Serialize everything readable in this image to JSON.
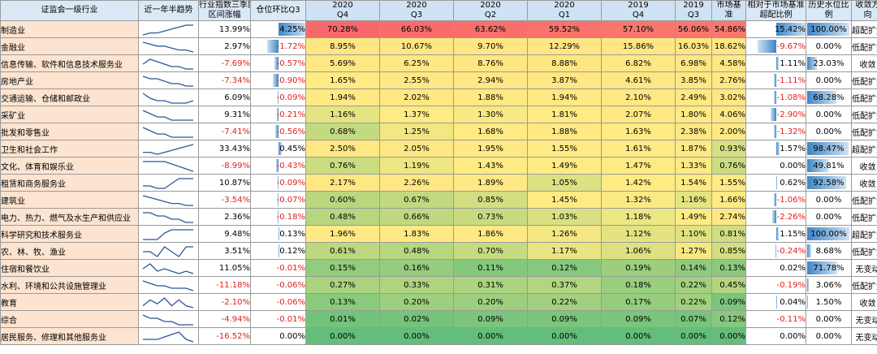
{
  "headers": {
    "industry": "证监会一级行业",
    "trend": "近一年半趋势",
    "change": [
      "行业指数三季度",
      "区间涨幅"
    ],
    "pos_change": "仓位环比Q3",
    "periods": [
      [
        "2020",
        "Q4"
      ],
      [
        "2020",
        "Q3"
      ],
      [
        "2020",
        "Q2"
      ],
      [
        "2020",
        "Q1"
      ],
      [
        "2019",
        "Q4"
      ],
      [
        "2019",
        "Q3"
      ]
    ],
    "benchmark": [
      "市场基",
      "准"
    ],
    "over": [
      "相对于市场基准",
      "超配比例"
    ],
    "hist": [
      "历史水位比",
      "例"
    ],
    "dir": [
      "收敛方",
      "向"
    ]
  },
  "colors": {
    "header_bg": "#dbe9f7",
    "industry_bg": "#fde4d0",
    "negative_text": "#e02020",
    "bar_blue": "#3d85c6",
    "heat_low": "#63be7b",
    "heat_mid": "#ffeb84",
    "heat_high": "#f8696b"
  },
  "rows": [
    {
      "name": "制造业",
      "trend": [
        2,
        3,
        3,
        4,
        5,
        6,
        7,
        7
      ],
      "change": "13.99%",
      "pos": "4.25%",
      "q": [
        "70.28%",
        "66.03%",
        "63.62%",
        "59.52%",
        "57.10%",
        "56.06%"
      ],
      "bench": "54.86%",
      "over": "15.42%",
      "hist": "100.00%",
      "dir": "超配扩大"
    },
    {
      "name": "金融业",
      "trend": [
        7,
        6,
        5,
        5,
        4,
        3,
        3,
        2
      ],
      "change": "2.97%",
      "pos": "-1.72%",
      "q": [
        "8.95%",
        "10.67%",
        "9.70%",
        "12.29%",
        "15.86%",
        "16.03%"
      ],
      "bench": "18.62%",
      "over": "-9.67%",
      "hist": "0.00%",
      "dir": "低配扩大"
    },
    {
      "name": "信息传输、软件和信息技术服务业",
      "trend": [
        5,
        7,
        6,
        5,
        4,
        4,
        3,
        3
      ],
      "change": "-7.69%",
      "pos": "-0.57%",
      "q": [
        "5.69%",
        "6.25%",
        "8.76%",
        "8.88%",
        "6.82%",
        "6.98%"
      ],
      "bench": "4.58%",
      "over": "1.11%",
      "hist": "23.03%",
      "dir": "收敛"
    },
    {
      "name": "房地产业",
      "trend": [
        7,
        6,
        6,
        5,
        4,
        4,
        3,
        3
      ],
      "change": "-7.34%",
      "pos": "-0.90%",
      "q": [
        "1.65%",
        "2.55%",
        "2.94%",
        "3.87%",
        "4.61%",
        "3.85%"
      ],
      "bench": "2.76%",
      "over": "-1.11%",
      "hist": "0.00%",
      "dir": "低配扩大"
    },
    {
      "name": "交通运输、仓储和邮政业",
      "trend": [
        7,
        5,
        4,
        4,
        3,
        3,
        3,
        4
      ],
      "change": "6.09%",
      "pos": "-0.09%",
      "q": [
        "1.94%",
        "2.02%",
        "1.88%",
        "1.94%",
        "2.10%",
        "2.49%"
      ],
      "bench": "3.02%",
      "over": "-1.08%",
      "hist": "68.28%",
      "dir": "低配扩大"
    },
    {
      "name": "采矿业",
      "trend": [
        6,
        5,
        4,
        4,
        3,
        3,
        3,
        3
      ],
      "change": "9.31%",
      "pos": "-0.21%",
      "q": [
        "1.16%",
        "1.37%",
        "1.30%",
        "1.81%",
        "2.07%",
        "1.80%"
      ],
      "bench": "4.06%",
      "over": "-2.90%",
      "hist": "0.00%",
      "dir": "低配扩大"
    },
    {
      "name": "批发和零售业",
      "trend": [
        6,
        5,
        4,
        4,
        3,
        3,
        3,
        3
      ],
      "change": "-7.41%",
      "pos": "-0.56%",
      "q": [
        "0.68%",
        "1.25%",
        "1.68%",
        "1.88%",
        "1.63%",
        "2.38%"
      ],
      "bench": "2.00%",
      "over": "-1.32%",
      "hist": "0.00%",
      "dir": "低配扩大"
    },
    {
      "name": "卫生和社会工作",
      "trend": [
        3,
        3,
        2,
        3,
        4,
        5,
        6,
        7
      ],
      "change": "33.43%",
      "pos": "0.45%",
      "q": [
        "2.50%",
        "2.05%",
        "1.95%",
        "1.55%",
        "1.61%",
        "1.87%"
      ],
      "bench": "0.93%",
      "over": "1.57%",
      "hist": "98.47%",
      "dir": "超配扩大"
    },
    {
      "name": "文化、体育和娱乐业",
      "trend": [
        6,
        6,
        6,
        6,
        5,
        4,
        3,
        2
      ],
      "change": "-8.99%",
      "pos": "-0.43%",
      "q": [
        "0.76%",
        "1.19%",
        "1.43%",
        "1.49%",
        "1.47%",
        "1.33%"
      ],
      "bench": "0.76%",
      "over": "0.00%",
      "hist": "49.81%",
      "dir": "收敛"
    },
    {
      "name": "租赁和商务服务业",
      "trend": [
        3,
        3,
        2,
        2,
        4,
        6,
        6,
        6
      ],
      "change": "10.87%",
      "pos": "-0.09%",
      "q": [
        "2.17%",
        "2.26%",
        "1.89%",
        "1.05%",
        "1.42%",
        "1.54%"
      ],
      "bench": "1.55%",
      "over": "0.62%",
      "hist": "92.58%",
      "dir": "收敛"
    },
    {
      "name": "建筑业",
      "trend": [
        7,
        6,
        5,
        4,
        3,
        3,
        2,
        2
      ],
      "change": "-3.54%",
      "pos": "-0.07%",
      "q": [
        "0.60%",
        "0.67%",
        "0.85%",
        "1.45%",
        "1.32%",
        "1.16%"
      ],
      "bench": "1.66%",
      "over": "-1.06%",
      "hist": "0.00%",
      "dir": "低配扩大"
    },
    {
      "name": "电力、热力、燃气及水生产和供应业",
      "trend": [
        6,
        6,
        5,
        5,
        4,
        4,
        3,
        3
      ],
      "change": "2.36%",
      "pos": "-0.18%",
      "q": [
        "0.48%",
        "0.66%",
        "0.73%",
        "1.03%",
        "1.18%",
        "1.49%"
      ],
      "bench": "2.74%",
      "over": "-2.26%",
      "hist": "0.00%",
      "dir": "低配扩大"
    },
    {
      "name": "科学研究和技术服务业",
      "trend": [
        3,
        3,
        3,
        5,
        6,
        6,
        6,
        6
      ],
      "change": "9.48%",
      "pos": "0.13%",
      "q": [
        "1.96%",
        "1.83%",
        "1.86%",
        "1.26%",
        "1.12%",
        "1.10%"
      ],
      "bench": "0.81%",
      "over": "1.15%",
      "hist": "100.00%",
      "dir": "超配扩大"
    },
    {
      "name": "农、林、牧、渔业",
      "trend": [
        4,
        4,
        3,
        5,
        4,
        3,
        5,
        5
      ],
      "change": "3.51%",
      "pos": "0.12%",
      "q": [
        "0.61%",
        "0.48%",
        "0.70%",
        "1.17%",
        "1.06%",
        "1.27%"
      ],
      "bench": "0.85%",
      "over": "-0.24%",
      "hist": "8.68%",
      "dir": "低配扩大"
    },
    {
      "name": "住宿和餐饮业",
      "trend": [
        5,
        7,
        4,
        5,
        4,
        3,
        4,
        3
      ],
      "change": "11.05%",
      "pos": "-0.01%",
      "q": [
        "0.15%",
        "0.16%",
        "0.11%",
        "0.12%",
        "0.19%",
        "0.14%"
      ],
      "bench": "0.13%",
      "over": "0.02%",
      "hist": "71.78%",
      "dir": "无变动"
    },
    {
      "name": "水利、环境和公共设施管理业",
      "trend": [
        7,
        6,
        5,
        5,
        4,
        4,
        4,
        3
      ],
      "change": "-11.18%",
      "pos": "-0.06%",
      "q": [
        "0.27%",
        "0.33%",
        "0.31%",
        "0.37%",
        "0.18%",
        "0.22%"
      ],
      "bench": "0.45%",
      "over": "-0.19%",
      "hist": "3.06%",
      "dir": "低配扩大"
    },
    {
      "name": "教育",
      "trend": [
        3,
        6,
        4,
        7,
        3,
        6,
        3,
        2
      ],
      "change": "-2.10%",
      "pos": "-0.06%",
      "q": [
        "0.13%",
        "0.20%",
        "0.20%",
        "0.22%",
        "0.17%",
        "0.22%"
      ],
      "bench": "0.09%",
      "over": "0.04%",
      "hist": "1.50%",
      "dir": "收敛"
    },
    {
      "name": "综合",
      "trend": [
        6,
        5,
        5,
        4,
        4,
        3,
        3,
        3
      ],
      "change": "-4.94%",
      "pos": "-0.01%",
      "q": [
        "0.01%",
        "0.02%",
        "0.09%",
        "0.09%",
        "0.09%",
        "0.07%"
      ],
      "bench": "0.12%",
      "over": "-0.11%",
      "hist": "0.00%",
      "dir": "无变动"
    },
    {
      "name": "居民服务、修理和其他服务业",
      "trend": [
        4,
        4,
        4,
        5,
        6,
        7,
        4,
        3
      ],
      "change": "-16.52%",
      "pos": "0.00%",
      "q": [
        "0.00%",
        "0.00%",
        "0.00%",
        "0.00%",
        "0.00%",
        "0.00%"
      ],
      "bench": "0.00%",
      "over": "0.00%",
      "hist": "0.00%",
      "dir": "无变动"
    }
  ]
}
